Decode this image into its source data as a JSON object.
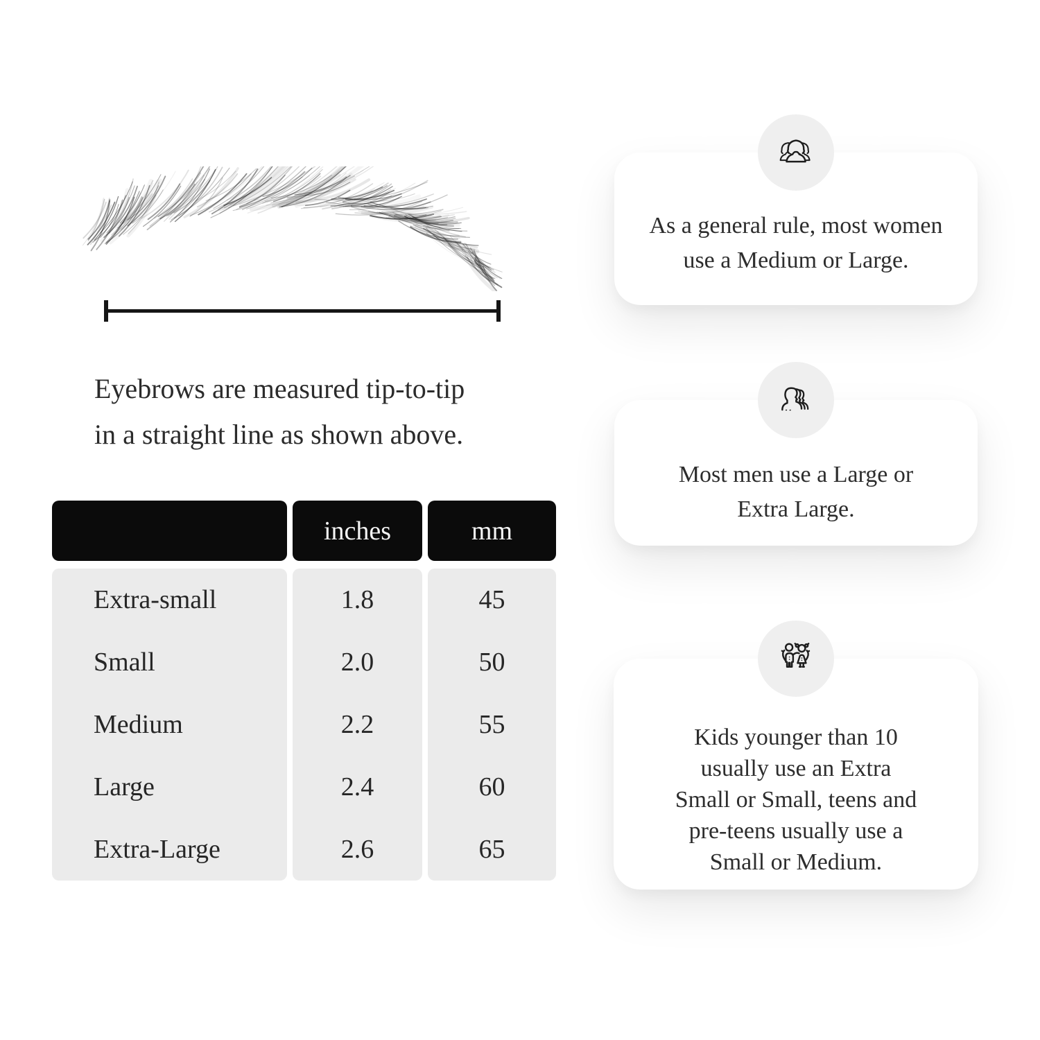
{
  "measurement": {
    "caption": "Eyebrows are measured tip-to-tip\nin a straight line as shown above."
  },
  "size_table": {
    "columns": [
      "",
      "inches",
      "mm"
    ],
    "rows": [
      {
        "label": "Extra-small",
        "inches": "1.8",
        "mm": "45"
      },
      {
        "label": "Small",
        "inches": "2.0",
        "mm": "50"
      },
      {
        "label": "Medium",
        "inches": "2.2",
        "mm": "55"
      },
      {
        "label": "Large",
        "inches": "2.4",
        "mm": "60"
      },
      {
        "label": "Extra-Large",
        "inches": "2.6",
        "mm": "65"
      }
    ]
  },
  "cards": [
    {
      "icon": "women-group-icon",
      "text": "As a general rule, most women\nuse a Medium or Large."
    },
    {
      "icon": "men-group-icon",
      "text": "Most men use a Large or\nExtra Large."
    },
    {
      "icon": "kids-icon",
      "text": "Kids younger than 10\nusually use an Extra\nSmall or Small, teens and\npre-teens usually use a\nSmall or Medium."
    }
  ],
  "colors": {
    "background": "#ffffff",
    "table_header_bg": "#0b0b0b",
    "table_header_text": "#f5f5f5",
    "table_body_bg": "#ebebeb",
    "card_bg": "#ffffff",
    "icon_circle_bg": "#efefef",
    "text": "#2d2d2d",
    "line": "#161616"
  }
}
